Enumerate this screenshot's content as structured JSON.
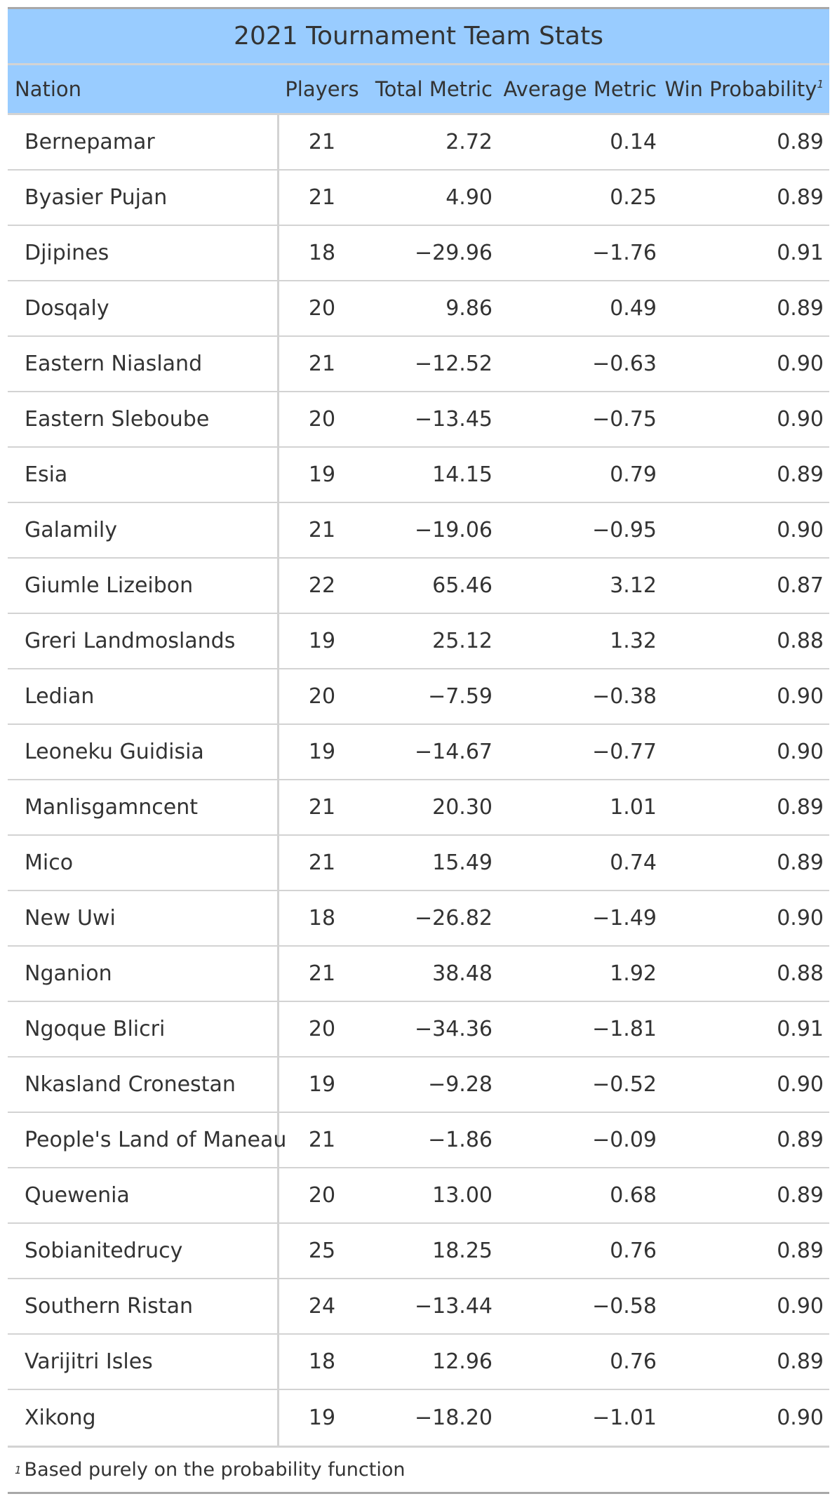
{
  "title": "2021 Tournament Team Stats",
  "columns": {
    "nation": "Nation",
    "players": "Players",
    "total": "Total Metric",
    "average": "Average Metric",
    "win": "Win Probability",
    "win_footnote_mark": "1"
  },
  "rows": [
    {
      "nation": "Bernepamar",
      "players": "21",
      "total": "2.72",
      "average": "0.14",
      "win": "0.89"
    },
    {
      "nation": "Byasier Pujan",
      "players": "21",
      "total": "4.90",
      "average": "0.25",
      "win": "0.89"
    },
    {
      "nation": "Djipines",
      "players": "18",
      "total": "−29.96",
      "average": "−1.76",
      "win": "0.91"
    },
    {
      "nation": "Dosqaly",
      "players": "20",
      "total": "9.86",
      "average": "0.49",
      "win": "0.89"
    },
    {
      "nation": "Eastern Niasland",
      "players": "21",
      "total": "−12.52",
      "average": "−0.63",
      "win": "0.90"
    },
    {
      "nation": "Eastern Sleboube",
      "players": "20",
      "total": "−13.45",
      "average": "−0.75",
      "win": "0.90"
    },
    {
      "nation": "Esia",
      "players": "19",
      "total": "14.15",
      "average": "0.79",
      "win": "0.89"
    },
    {
      "nation": "Galamily",
      "players": "21",
      "total": "−19.06",
      "average": "−0.95",
      "win": "0.90"
    },
    {
      "nation": "Giumle Lizeibon",
      "players": "22",
      "total": "65.46",
      "average": "3.12",
      "win": "0.87"
    },
    {
      "nation": "Greri Landmoslands",
      "players": "19",
      "total": "25.12",
      "average": "1.32",
      "win": "0.88"
    },
    {
      "nation": "Ledian",
      "players": "20",
      "total": "−7.59",
      "average": "−0.38",
      "win": "0.90"
    },
    {
      "nation": "Leoneku Guidisia",
      "players": "19",
      "total": "−14.67",
      "average": "−0.77",
      "win": "0.90"
    },
    {
      "nation": "Manlisgamncent",
      "players": "21",
      "total": "20.30",
      "average": "1.01",
      "win": "0.89"
    },
    {
      "nation": "Mico",
      "players": "21",
      "total": "15.49",
      "average": "0.74",
      "win": "0.89"
    },
    {
      "nation": "New Uwi",
      "players": "18",
      "total": "−26.82",
      "average": "−1.49",
      "win": "0.90"
    },
    {
      "nation": "Nganion",
      "players": "21",
      "total": "38.48",
      "average": "1.92",
      "win": "0.88"
    },
    {
      "nation": "Ngoque Blicri",
      "players": "20",
      "total": "−34.36",
      "average": "−1.81",
      "win": "0.91"
    },
    {
      "nation": "Nkasland Cronestan",
      "players": "19",
      "total": "−9.28",
      "average": "−0.52",
      "win": "0.90"
    },
    {
      "nation": "People's Land of Maneau",
      "players": "21",
      "total": "−1.86",
      "average": "−0.09",
      "win": "0.89"
    },
    {
      "nation": "Quewenia",
      "players": "20",
      "total": "13.00",
      "average": "0.68",
      "win": "0.89"
    },
    {
      "nation": "Sobianitedrucy",
      "players": "25",
      "total": "18.25",
      "average": "0.76",
      "win": "0.89"
    },
    {
      "nation": "Southern Ristan",
      "players": "24",
      "total": "−13.44",
      "average": "−0.58",
      "win": "0.90"
    },
    {
      "nation": "Varijitri Isles",
      "players": "18",
      "total": "12.96",
      "average": "0.76",
      "win": "0.89"
    },
    {
      "nation": "Xikong",
      "players": "19",
      "total": "−18.20",
      "average": "−1.01",
      "win": "0.90"
    }
  ],
  "footnote": {
    "mark": "1",
    "text": "Based purely on the probability function"
  }
}
